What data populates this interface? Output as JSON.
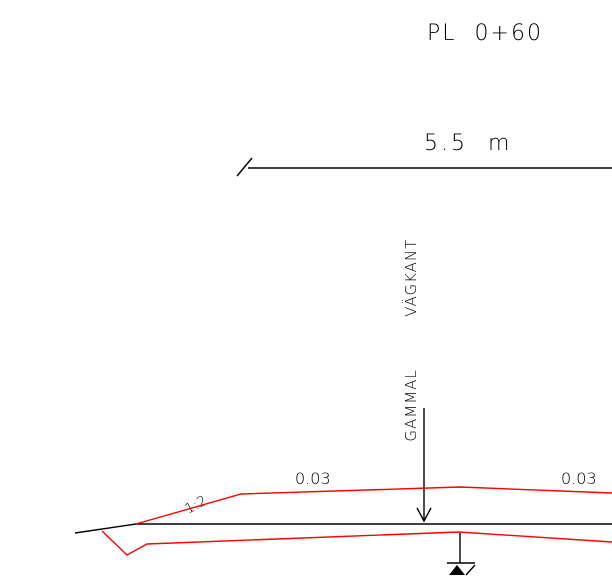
{
  "drawing": {
    "title": "PL  0+60",
    "width_dimension": "5.5  m",
    "note_line1": "GAMMAL",
    "note_line2": "VÄGKANT",
    "slope_left": "0.03",
    "slope_right": "0.03",
    "side_slope_ratio": "1:2"
  },
  "colors": {
    "new_section": "#ff0000",
    "existing_ground": "#000000"
  },
  "icons": {
    "level_marker": "benchmark-triangle-icon",
    "note_arrow": "down-arrow-icon"
  }
}
